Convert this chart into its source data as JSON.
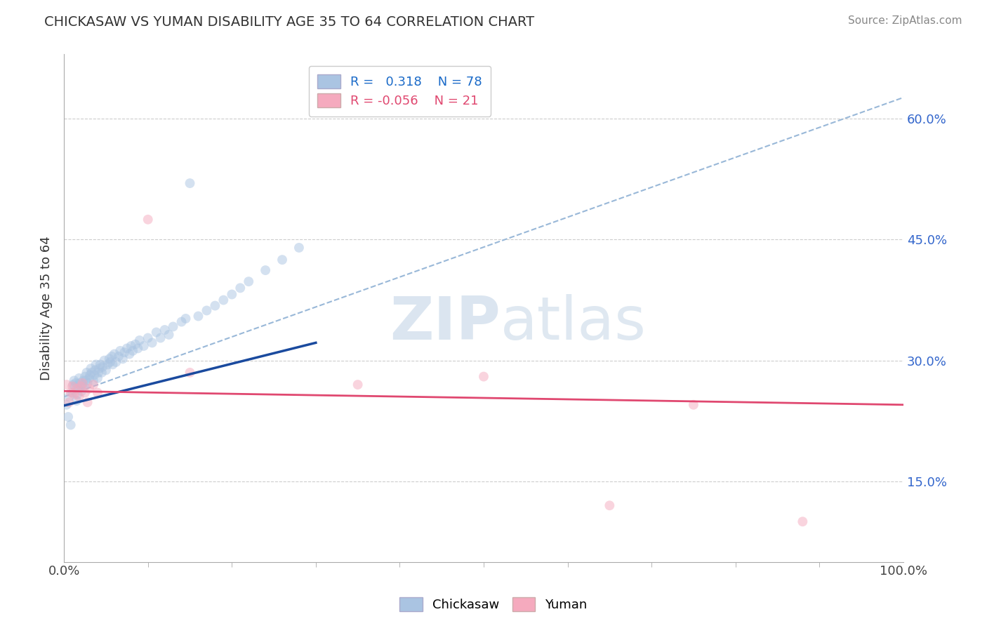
{
  "title": "CHICKASAW VS YUMAN DISABILITY AGE 35 TO 64 CORRELATION CHART",
  "source_text": "Source: ZipAtlas.com",
  "ylabel": "Disability Age 35 to 64",
  "xlim": [
    0.0,
    1.0
  ],
  "ylim": [
    0.05,
    0.68
  ],
  "xtick_labels": [
    "0.0%",
    "100.0%"
  ],
  "ytick_positions": [
    0.15,
    0.3,
    0.45,
    0.6
  ],
  "ytick_labels": [
    "15.0%",
    "30.0%",
    "45.0%",
    "60.0%"
  ],
  "chickasaw_color": "#aac4e2",
  "yuman_color": "#f5aabe",
  "chickasaw_line_color": "#1a4a9e",
  "yuman_line_color": "#e04870",
  "diagonal_line_color": "#99b8d8",
  "watermark_zip": "ZIP",
  "watermark_atlas": "atlas",
  "r_chickasaw": 0.318,
  "n_chickasaw": 78,
  "r_yuman": -0.056,
  "n_yuman": 21,
  "legend_text_color_blue": "#1a6ac8",
  "legend_text_color_pink": "#e04870",
  "chickasaw_x": [
    0.003,
    0.005,
    0.006,
    0.008,
    0.01,
    0.011,
    0.012,
    0.013,
    0.014,
    0.015,
    0.016,
    0.017,
    0.018,
    0.019,
    0.02,
    0.021,
    0.022,
    0.023,
    0.024,
    0.025,
    0.026,
    0.027,
    0.028,
    0.03,
    0.031,
    0.032,
    0.033,
    0.035,
    0.036,
    0.037,
    0.038,
    0.04,
    0.041,
    0.042,
    0.043,
    0.045,
    0.046,
    0.048,
    0.05,
    0.052,
    0.054,
    0.055,
    0.057,
    0.058,
    0.06,
    0.062,
    0.065,
    0.067,
    0.07,
    0.072,
    0.075,
    0.078,
    0.08,
    0.082,
    0.085,
    0.088,
    0.09,
    0.095,
    0.1,
    0.105,
    0.11,
    0.115,
    0.12,
    0.125,
    0.13,
    0.14,
    0.145,
    0.15,
    0.16,
    0.17,
    0.18,
    0.19,
    0.2,
    0.21,
    0.22,
    0.24,
    0.26,
    0.28
  ],
  "chickasaw_y": [
    0.245,
    0.23,
    0.255,
    0.22,
    0.26,
    0.27,
    0.275,
    0.268,
    0.272,
    0.25,
    0.258,
    0.265,
    0.278,
    0.272,
    0.268,
    0.262,
    0.27,
    0.275,
    0.268,
    0.28,
    0.275,
    0.285,
    0.272,
    0.278,
    0.282,
    0.29,
    0.285,
    0.275,
    0.282,
    0.288,
    0.295,
    0.278,
    0.285,
    0.29,
    0.295,
    0.285,
    0.292,
    0.3,
    0.288,
    0.295,
    0.302,
    0.298,
    0.305,
    0.295,
    0.308,
    0.298,
    0.305,
    0.312,
    0.302,
    0.31,
    0.315,
    0.308,
    0.318,
    0.312,
    0.32,
    0.315,
    0.325,
    0.318,
    0.328,
    0.322,
    0.335,
    0.328,
    0.338,
    0.332,
    0.342,
    0.348,
    0.352,
    0.52,
    0.355,
    0.362,
    0.368,
    0.375,
    0.382,
    0.39,
    0.398,
    0.412,
    0.425,
    0.44
  ],
  "yuman_x": [
    0.003,
    0.006,
    0.008,
    0.01,
    0.012,
    0.015,
    0.018,
    0.02,
    0.022,
    0.025,
    0.028,
    0.03,
    0.035,
    0.04,
    0.1,
    0.15,
    0.35,
    0.5,
    0.65,
    0.75,
    0.88
  ],
  "yuman_y": [
    0.27,
    0.248,
    0.26,
    0.268,
    0.258,
    0.265,
    0.255,
    0.268,
    0.272,
    0.26,
    0.248,
    0.265,
    0.27,
    0.26,
    0.475,
    0.285,
    0.27,
    0.28,
    0.12,
    0.245,
    0.1
  ],
  "blue_line_x": [
    0.0,
    0.3
  ],
  "blue_line_y": [
    0.244,
    0.322
  ],
  "pink_line_x": [
    0.0,
    1.0
  ],
  "pink_line_y": [
    0.262,
    0.245
  ]
}
